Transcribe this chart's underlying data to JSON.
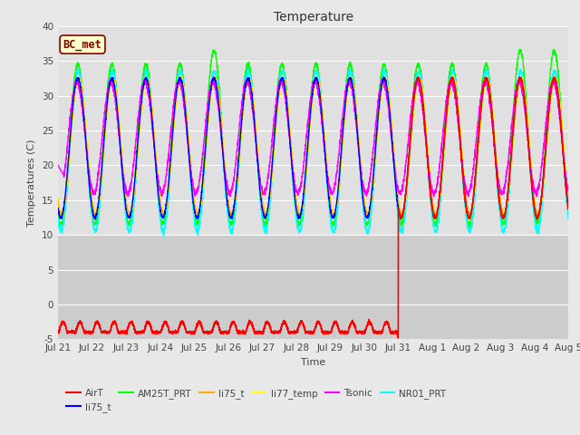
{
  "title": "Temperature",
  "ylabel": "Temperatures (C)",
  "xlabel": "Time",
  "ylim": [
    -5,
    40
  ],
  "annotation": "BC_met",
  "x_tick_labels": [
    "Jul 21",
    "Jul 22",
    "Jul 23",
    "Jul 24",
    "Jul 25",
    "Jul 26",
    "Jul 27",
    "Jul 28",
    "Jul 29",
    "Jul 30",
    "Jul 31",
    "Aug 1",
    "Aug 2",
    "Aug 3",
    "Aug 4",
    "Aug 5"
  ],
  "n_days": 15,
  "samples_per_day": 288,
  "colors": {
    "AirT": "#ff0000",
    "li75_t": "#0000ff",
    "AM25T_PRT": "#00ff00",
    "li75_t2": "#ffaa00",
    "li77_temp": "#ffff00",
    "Tsonic": "#ff00ff",
    "NR01_PRT": "#00ffff"
  },
  "fig_bg": "#e8e8e8",
  "plot_bg_upper": "#e0e0e0",
  "plot_bg_lower": "#cccccc",
  "grid_color": "#ffffff",
  "title_fontsize": 10,
  "label_fontsize": 8,
  "tick_fontsize": 7.5
}
